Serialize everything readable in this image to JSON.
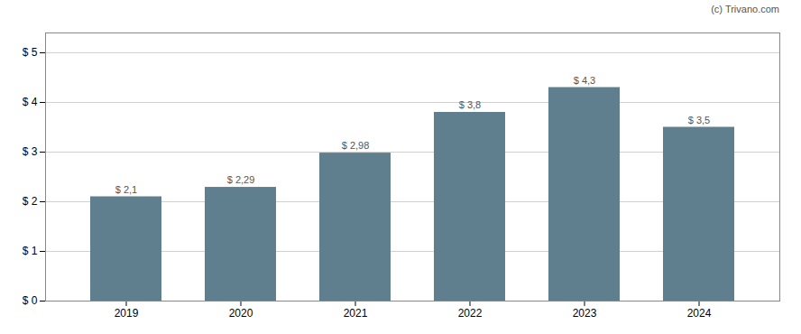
{
  "chart_data": {
    "type": "bar",
    "categories": [
      "2019",
      "2020",
      "2021",
      "2022",
      "2023",
      "2024"
    ],
    "values": [
      2.1,
      2.29,
      2.98,
      3.8,
      4.3,
      3.5
    ],
    "value_labels": [
      "$ 2,1",
      "$ 2,29",
      "$ 2,98",
      "$ 3,8",
      "$ 4,3",
      "$ 3,5"
    ],
    "data_labels": true,
    "color": "#5f7f8e",
    "ylim": [
      0,
      5.4
    ],
    "yticks": [
      {
        "value": 0,
        "label": "$ 0"
      },
      {
        "value": 1,
        "label": "$ 1"
      },
      {
        "value": 2,
        "label": "$ 2"
      },
      {
        "value": 3,
        "label": "$ 3"
      },
      {
        "value": 4,
        "label": "$ 4"
      },
      {
        "value": 5,
        "label": "$ 5"
      }
    ],
    "grid": true,
    "annotations": [
      "(c) Trivano.com"
    ]
  }
}
